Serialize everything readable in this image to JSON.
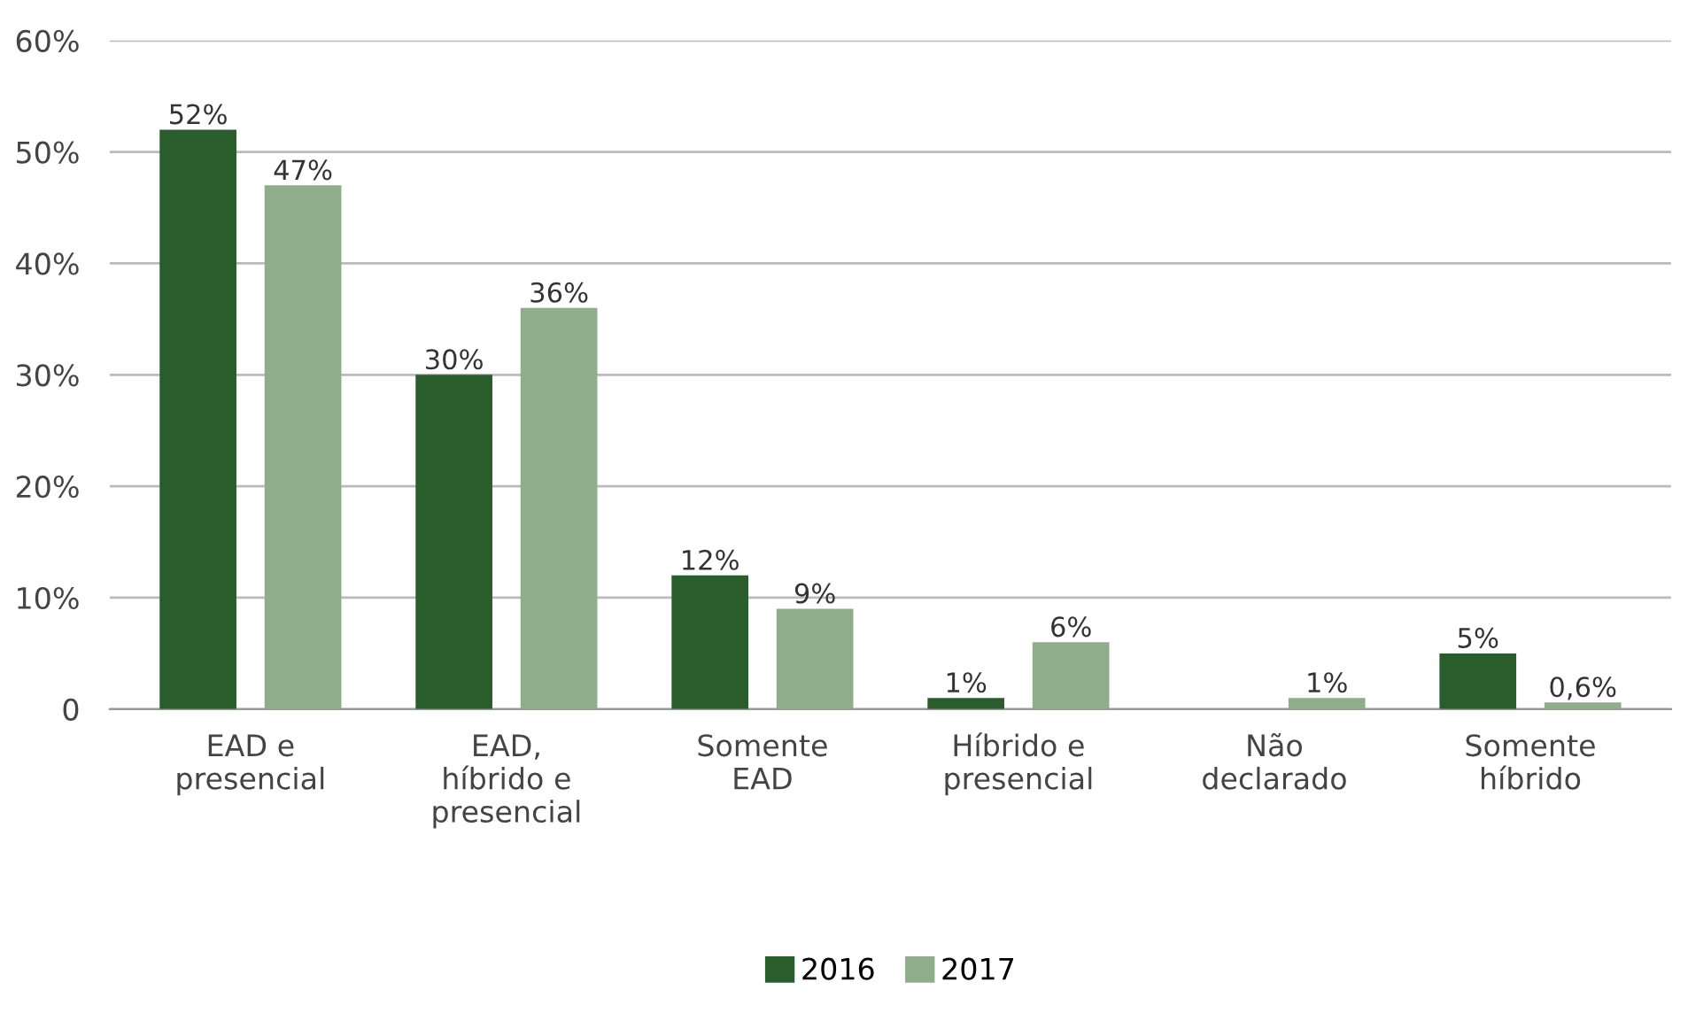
{
  "chart_data": {
    "type": "bar",
    "categories": [
      "EAD e\npresencial",
      "EAD,\nhíbrido e\npresencial",
      "Somente\nEAD",
      "Híbrido e\npresencial",
      "Não\ndeclarado",
      "Somente\nhíbrido"
    ],
    "series": [
      {
        "name": "2016",
        "color": "#2b5d2c",
        "values": [
          52,
          30,
          12,
          1,
          null,
          5
        ],
        "value_labels": [
          "52%",
          "30%",
          "12%",
          "1%",
          null,
          "5%"
        ]
      },
      {
        "name": "2017",
        "color": "#8fad8b",
        "values": [
          47,
          36,
          9,
          6,
          1,
          0.6
        ],
        "value_labels": [
          "47%",
          "36%",
          "9%",
          "6%",
          "1%",
          "0,6%"
        ]
      }
    ],
    "ylim": [
      0,
      60
    ],
    "yticks": [
      {
        "value": 0,
        "label": "0"
      },
      {
        "value": 10,
        "label": "10%"
      },
      {
        "value": 20,
        "label": "20%"
      },
      {
        "value": 30,
        "label": "30%"
      },
      {
        "value": 40,
        "label": "40%"
      },
      {
        "value": 50,
        "label": "50%"
      },
      {
        "value": 60,
        "label": "60%"
      }
    ],
    "grid": "y",
    "legend": "bottom"
  }
}
